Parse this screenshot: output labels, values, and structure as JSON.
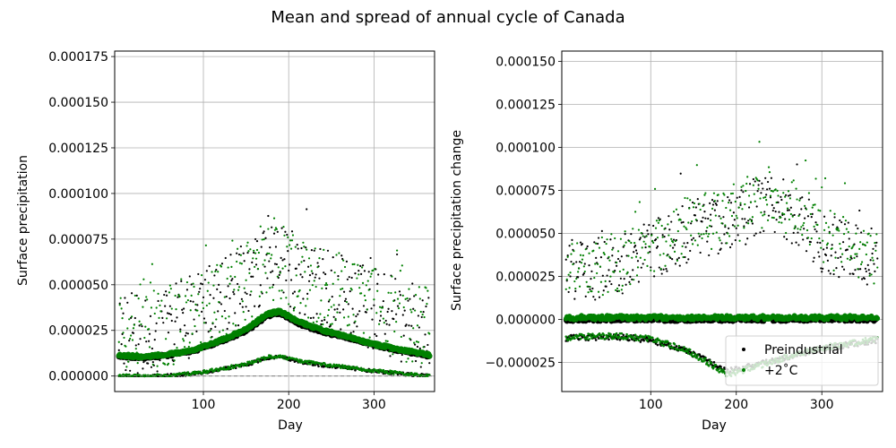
{
  "figure": {
    "suptitle": "Mean and spread of annual cycle of Canada"
  },
  "chart_data": [
    {
      "type": "scatter",
      "xlabel": "Day",
      "ylabel": "Surface precipitation",
      "xlim": [
        -4,
        371
      ],
      "ylim": [
        -8.5e-06,
        0.000178
      ],
      "xticks": [
        100,
        200,
        300
      ],
      "yticks": [
        0,
        2.5e-05,
        5e-05,
        7.5e-05,
        0.0001,
        0.000125,
        0.00015,
        0.000175
      ],
      "ytick_labels": [
        "0.000000",
        "0.000025",
        "0.000050",
        "0.000075",
        "0.000100",
        "0.000125",
        "0.000150",
        "0.000175"
      ],
      "grid": true,
      "series": [
        {
          "name": "Preindustrial",
          "color": "#000000",
          "mean_curve": [
            [
              1,
              1.1e-05
            ],
            [
              30,
              1e-05
            ],
            [
              60,
              1.15e-05
            ],
            [
              90,
              1.4e-05
            ],
            [
              120,
              1.9e-05
            ],
            [
              150,
              2.45e-05
            ],
            [
              175,
              3.3e-05
            ],
            [
              190,
              3.45e-05
            ],
            [
              210,
              2.9e-05
            ],
            [
              240,
              2.4e-05
            ],
            [
              270,
              2.1e-05
            ],
            [
              300,
              1.7e-05
            ],
            [
              330,
              1.4e-05
            ],
            [
              365,
              1.1e-05
            ]
          ],
          "spread_curve": [
            [
              1,
              6e-06
            ],
            [
              30,
              5.5e-06
            ],
            [
              60,
              7e-06
            ],
            [
              90,
              9e-06
            ],
            [
              120,
              1e-05
            ],
            [
              150,
              1.2e-05
            ],
            [
              170,
              1.3e-05
            ],
            [
              190,
              1.35e-05
            ],
            [
              210,
              1.2e-05
            ],
            [
              240,
              1.1e-05
            ],
            [
              270,
              1e-05
            ],
            [
              300,
              9e-06
            ],
            [
              330,
              7.5e-06
            ],
            [
              365,
              6.5e-06
            ]
          ],
          "spread_scale": 1.0,
          "seed": 11
        },
        {
          "name": "+2˚C",
          "color": "#008000",
          "mean_curve": [
            [
              1,
              1.15e-05
            ],
            [
              30,
              1.05e-05
            ],
            [
              60,
              1.2e-05
            ],
            [
              90,
              1.45e-05
            ],
            [
              120,
              1.95e-05
            ],
            [
              150,
              2.55e-05
            ],
            [
              175,
              3.4e-05
            ],
            [
              190,
              3.55e-05
            ],
            [
              210,
              3e-05
            ],
            [
              240,
              2.5e-05
            ],
            [
              270,
              2.15e-05
            ],
            [
              300,
              1.75e-05
            ],
            [
              330,
              1.45e-05
            ],
            [
              365,
              1.15e-05
            ]
          ],
          "spread_curve": [
            [
              1,
              6e-06
            ],
            [
              30,
              5.5e-06
            ],
            [
              60,
              7e-06
            ],
            [
              90,
              9e-06
            ],
            [
              120,
              1e-05
            ],
            [
              150,
              1.2e-05
            ],
            [
              170,
              1.3e-05
            ],
            [
              190,
              1.35e-05
            ],
            [
              210,
              1.2e-05
            ],
            [
              240,
              1.1e-05
            ],
            [
              270,
              1e-05
            ],
            [
              300,
              9e-06
            ],
            [
              330,
              7.5e-06
            ],
            [
              365,
              6.5e-06
            ]
          ],
          "spread_scale": 1.0,
          "seed": 23
        }
      ]
    },
    {
      "type": "scatter",
      "xlabel": "Day",
      "ylabel": "Surface precipitation change",
      "xlim": [
        -4,
        371
      ],
      "ylim": [
        -4.2e-05,
        0.000156
      ],
      "xticks": [
        100,
        200,
        300
      ],
      "yticks": [
        -2.5e-05,
        0,
        2.5e-05,
        5e-05,
        7.5e-05,
        0.0001,
        0.000125,
        0.00015
      ],
      "ytick_labels": [
        "−0.000025",
        "0.000000",
        "0.000025",
        "0.000050",
        "0.000075",
        "0.000100",
        "0.000125",
        "0.000150"
      ],
      "grid": true,
      "legend": {
        "placement": "lower-right",
        "entries": [
          "Preindustrial",
          "+2˚C"
        ]
      },
      "series": [
        {
          "name": "Preindustrial",
          "color": "#000000",
          "mean_curve": [
            [
              1,
              0.0
            ],
            [
              365,
              0.0
            ]
          ],
          "lower_curve": [
            [
              1,
              -1.1e-05
            ],
            [
              60,
              -1e-05
            ],
            [
              100,
              -1.2e-05
            ],
            [
              140,
              -1.8e-05
            ],
            [
              170,
              -2.5e-05
            ],
            [
              190,
              -3e-05
            ],
            [
              220,
              -2.7e-05
            ],
            [
              260,
              -2.2e-05
            ],
            [
              300,
              -1.7e-05
            ],
            [
              340,
              -1.4e-05
            ],
            [
              365,
              -1.2e-05
            ]
          ],
          "spread_curve": [
            [
              1,
              3e-05
            ],
            [
              30,
              2.8e-05
            ],
            [
              60,
              3e-05
            ],
            [
              90,
              3.8e-05
            ],
            [
              120,
              4.5e-05
            ],
            [
              150,
              5.2e-05
            ],
            [
              170,
              5.4e-05
            ],
            [
              190,
              5.6e-05
            ],
            [
              210,
              6e-05
            ],
            [
              240,
              6.8e-05
            ],
            [
              270,
              6e-05
            ],
            [
              300,
              4.5e-05
            ],
            [
              330,
              4e-05
            ],
            [
              365,
              3.5e-05
            ]
          ],
          "seed": 37
        },
        {
          "name": "+2˚C",
          "color": "#008000",
          "mean_curve": [
            [
              1,
              1e-06
            ],
            [
              365,
              1e-06
            ]
          ],
          "lower_curve": [
            [
              1,
              -1.05e-05
            ],
            [
              60,
              -9.5e-06
            ],
            [
              100,
              -1.15e-05
            ],
            [
              140,
              -1.75e-05
            ],
            [
              170,
              -2.6e-05
            ],
            [
              190,
              -3.2e-05
            ],
            [
              220,
              -2.8e-05
            ],
            [
              260,
              -2.2e-05
            ],
            [
              300,
              -1.65e-05
            ],
            [
              340,
              -1.35e-05
            ],
            [
              365,
              -1.15e-05
            ]
          ],
          "spread_curve": [
            [
              1,
              3.2e-05
            ],
            [
              30,
              3e-05
            ],
            [
              60,
              3.2e-05
            ],
            [
              90,
              4e-05
            ],
            [
              120,
              4.8e-05
            ],
            [
              150,
              5.6e-05
            ],
            [
              170,
              5.8e-05
            ],
            [
              190,
              6e-05
            ],
            [
              210,
              6.4e-05
            ],
            [
              240,
              7.2e-05
            ],
            [
              270,
              6.4e-05
            ],
            [
              300,
              4.8e-05
            ],
            [
              330,
              4.2e-05
            ],
            [
              365,
              3.7e-05
            ]
          ],
          "seed": 53
        }
      ]
    }
  ]
}
